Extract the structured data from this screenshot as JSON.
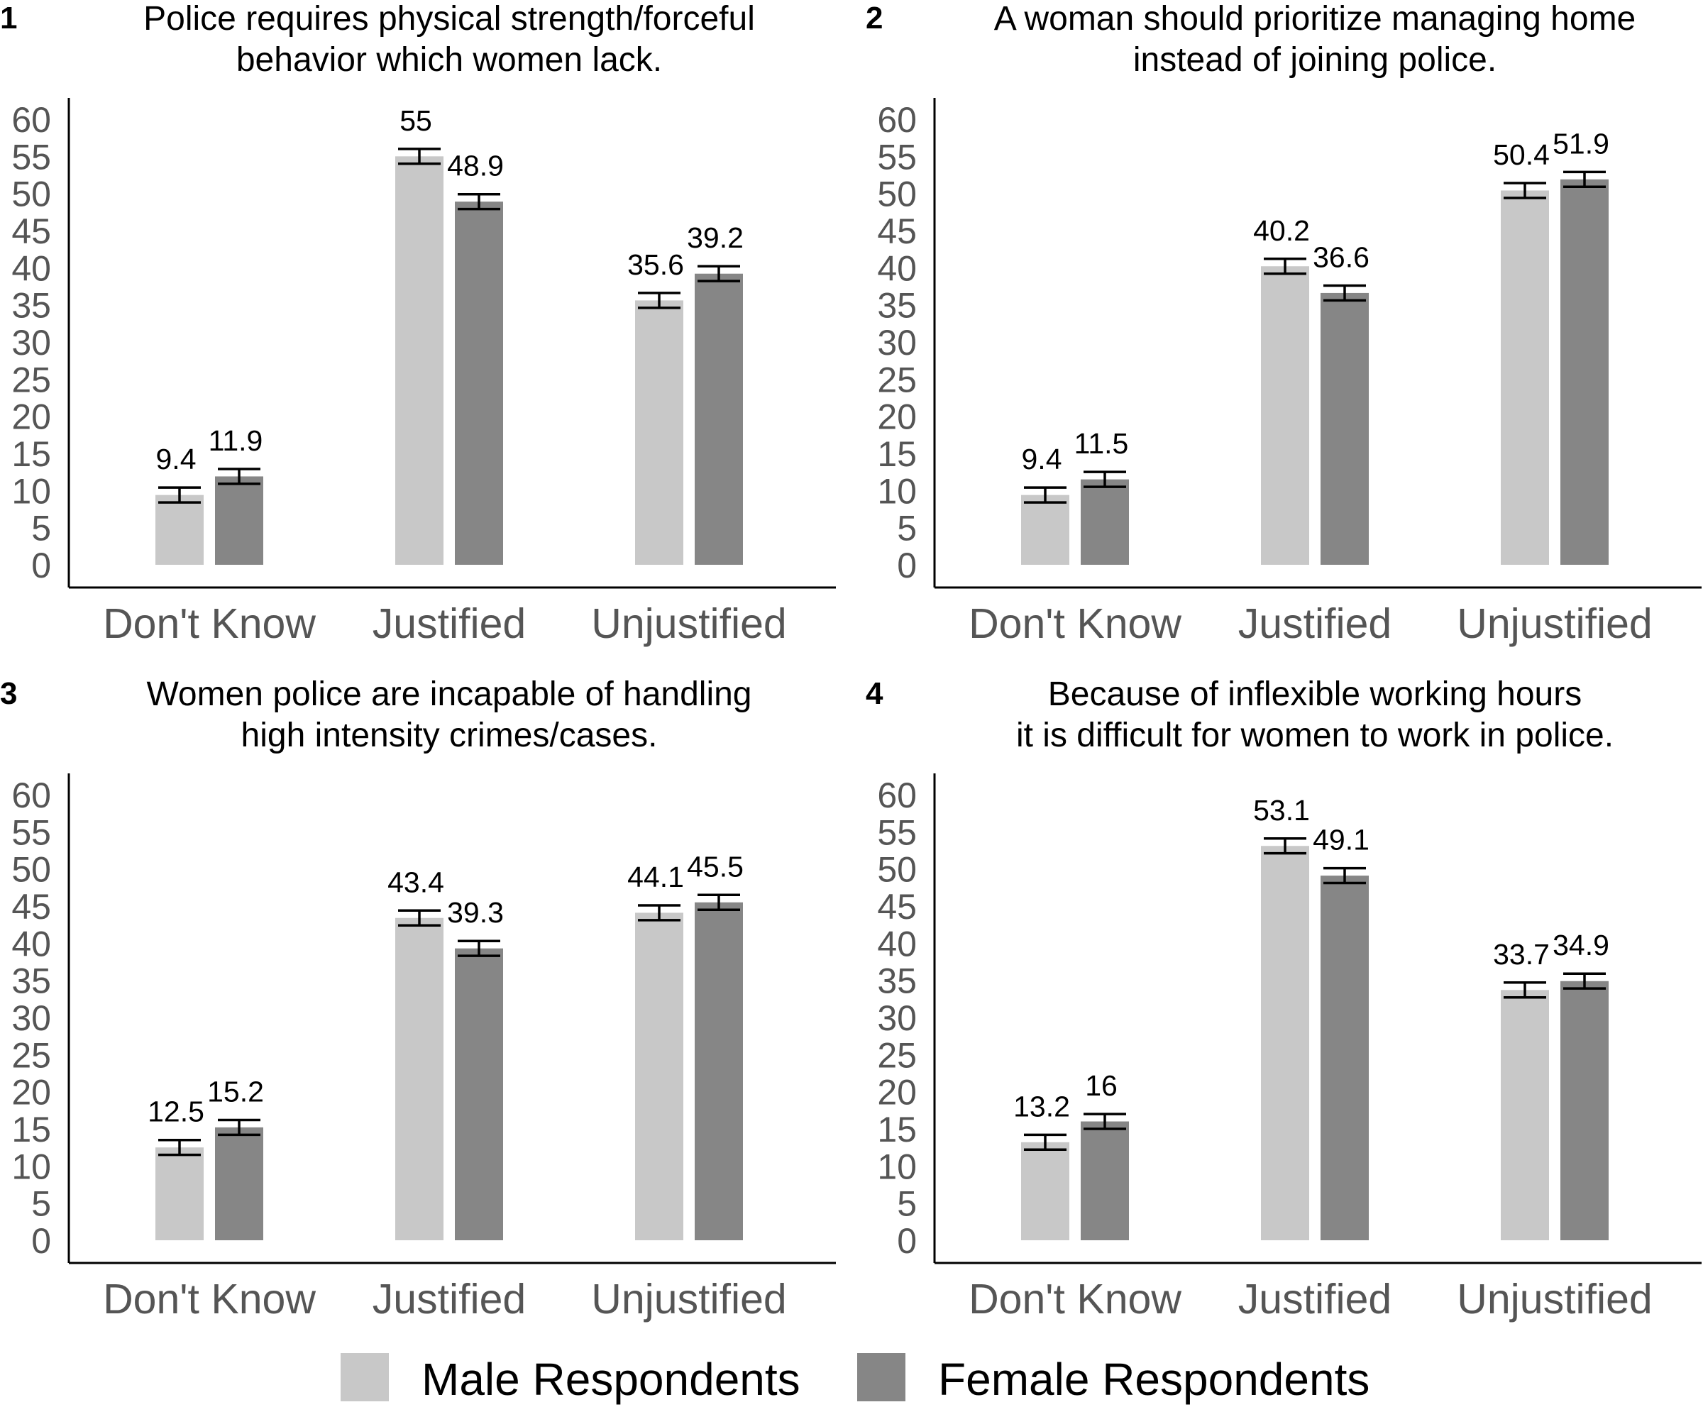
{
  "colors": {
    "male": "#c8c8c8",
    "female": "#868686",
    "tick_text": "#555555"
  },
  "legend": {
    "position": "bottom-center",
    "male_label": "Male Respondents",
    "female_label": "Female Respondents"
  },
  "chart_data": [
    {
      "type": "bar",
      "panel": "1",
      "title": [
        "Police requires physical strength/forceful",
        "behavior which women lack."
      ],
      "categories": [
        "Don't Know",
        "Justified",
        "Unjustified"
      ],
      "series": [
        {
          "name": "Male Respondents",
          "values": [
            9.4,
            55,
            35.6
          ],
          "labels": [
            "9.4",
            "55",
            "35.6"
          ]
        },
        {
          "name": "Female Respondents",
          "values": [
            11.9,
            48.9,
            39.2
          ],
          "labels": [
            "11.9",
            "48.9",
            "39.2"
          ]
        }
      ],
      "error_bar_halfwidth": 1.0,
      "ylim": [
        0,
        60
      ],
      "yticks": [
        0,
        5,
        10,
        15,
        20,
        25,
        30,
        35,
        40,
        45,
        50,
        55,
        60
      ],
      "xlabel": "",
      "ylabel": "",
      "grid": false
    },
    {
      "type": "bar",
      "panel": "2",
      "title": [
        "A woman should prioritize managing home",
        "instead of joining police."
      ],
      "categories": [
        "Don't Know",
        "Justified",
        "Unjustified"
      ],
      "series": [
        {
          "name": "Male Respondents",
          "values": [
            9.4,
            40.2,
            50.4
          ],
          "labels": [
            "9.4",
            "40.2",
            "50.4"
          ]
        },
        {
          "name": "Female Respondents",
          "values": [
            11.5,
            36.6,
            51.9
          ],
          "labels": [
            "11.5",
            "36.6",
            "51.9"
          ]
        }
      ],
      "error_bar_halfwidth": 1.0,
      "ylim": [
        0,
        60
      ],
      "yticks": [
        0,
        5,
        10,
        15,
        20,
        25,
        30,
        35,
        40,
        45,
        50,
        55,
        60
      ],
      "xlabel": "",
      "ylabel": "",
      "grid": false
    },
    {
      "type": "bar",
      "panel": "3",
      "title": [
        "Women police are incapable of handling",
        "high intensity crimes/cases."
      ],
      "categories": [
        "Don't Know",
        "Justified",
        "Unjustified"
      ],
      "series": [
        {
          "name": "Male Respondents",
          "values": [
            12.5,
            43.4,
            44.1
          ],
          "labels": [
            "12.5",
            "43.4",
            "44.1"
          ]
        },
        {
          "name": "Female Respondents",
          "values": [
            15.2,
            39.3,
            45.5
          ],
          "labels": [
            "15.2",
            "39.3",
            "45.5"
          ]
        }
      ],
      "error_bar_halfwidth": 1.0,
      "ylim": [
        0,
        60
      ],
      "yticks": [
        0,
        5,
        10,
        15,
        20,
        25,
        30,
        35,
        40,
        45,
        50,
        55,
        60
      ],
      "xlabel": "",
      "ylabel": "",
      "grid": false
    },
    {
      "type": "bar",
      "panel": "4",
      "title": [
        "Because of inflexible working hours",
        "it is difficult for women to work in police."
      ],
      "categories": [
        "Don't Know",
        "Justified",
        "Unjustified"
      ],
      "series": [
        {
          "name": "Male Respondents",
          "values": [
            13.2,
            53.1,
            33.7
          ],
          "labels": [
            "13.2",
            "53.1",
            "33.7"
          ]
        },
        {
          "name": "Female Respondents",
          "values": [
            16,
            49.1,
            34.9
          ],
          "labels": [
            "16",
            "49.1",
            "34.9"
          ]
        }
      ],
      "error_bar_halfwidth": 1.0,
      "ylim": [
        0,
        60
      ],
      "yticks": [
        0,
        5,
        10,
        15,
        20,
        25,
        30,
        35,
        40,
        45,
        50,
        55,
        60
      ],
      "xlabel": "",
      "ylabel": "",
      "grid": false
    }
  ]
}
